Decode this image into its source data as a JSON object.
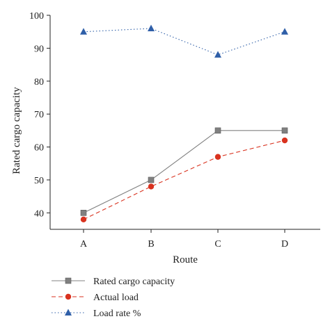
{
  "chart_data": {
    "type": "line",
    "categories": [
      "A",
      "B",
      "C",
      "D"
    ],
    "xlabel": "Route",
    "ylabel": "Rated cargo capacity",
    "ylim": [
      35,
      100
    ],
    "yticks": [
      40,
      50,
      60,
      70,
      80,
      90,
      100
    ],
    "grid": false,
    "legend_position": "bottom-left",
    "series": [
      {
        "name": "Rated cargo capacity",
        "values": [
          40,
          50,
          65,
          65
        ],
        "color": "#808080",
        "marker": "square",
        "line_style": "solid"
      },
      {
        "name": "Actual load",
        "values": [
          38,
          48,
          57,
          62
        ],
        "color": "#d9321f",
        "marker": "circle",
        "line_style": "dashed"
      },
      {
        "name": "Load rate %",
        "values": [
          95,
          96,
          88,
          95
        ],
        "color": "#2f5fa8",
        "marker": "triangle",
        "line_style": "dotted"
      }
    ]
  }
}
